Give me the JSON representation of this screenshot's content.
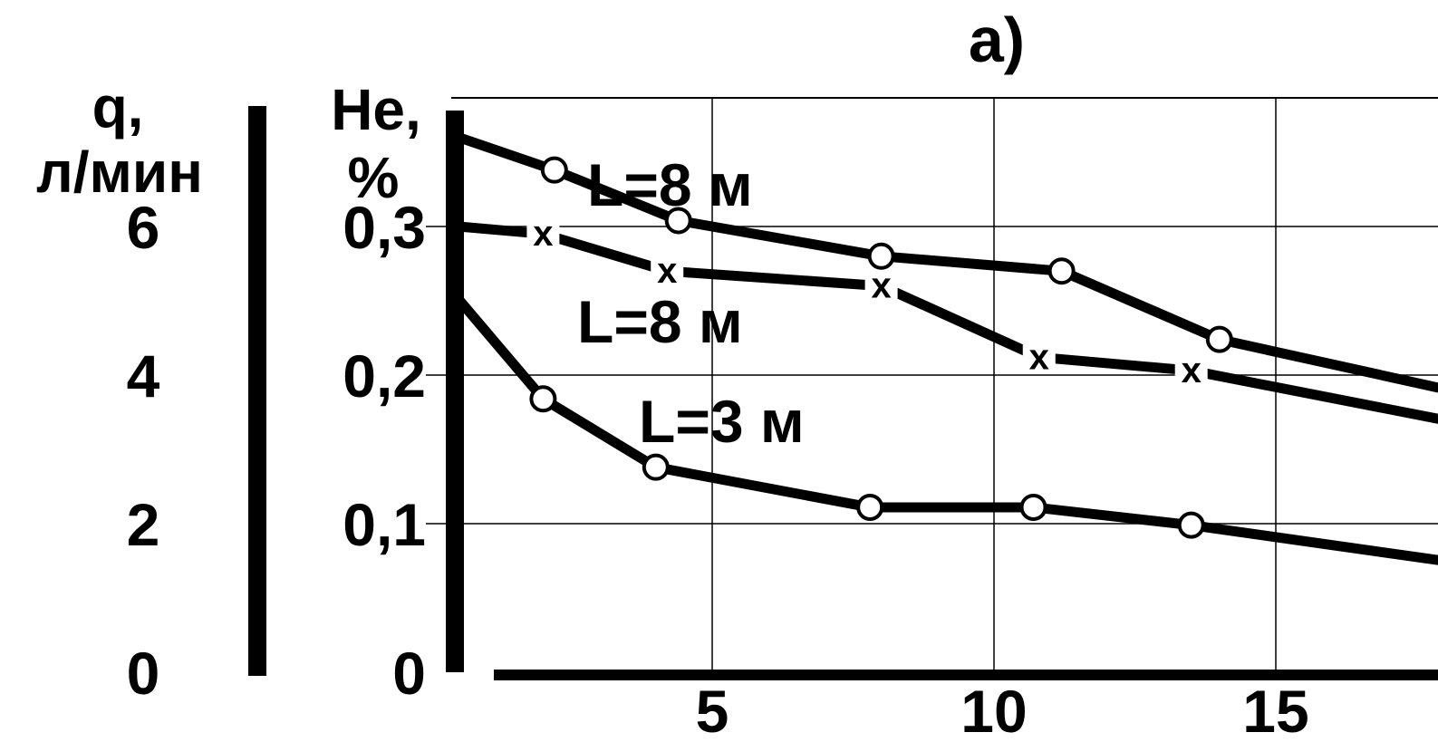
{
  "chart_data": {
    "type": "line",
    "title": "а)",
    "x": {
      "ticks": [
        5,
        10,
        15
      ],
      "range": [
        0.4,
        18.9
      ]
    },
    "y_left_q": {
      "label_line1": "q,",
      "label_line2": "л/мин",
      "ticks": [
        "0",
        "2",
        "4",
        "6"
      ],
      "tick_values": [
        0,
        2,
        4,
        6
      ],
      "range": [
        0,
        8
      ]
    },
    "y_right_he": {
      "label_line1": "He,",
      "label_line2": "%",
      "ticks": [
        "0",
        "0,1",
        "0,2",
        "0,3"
      ],
      "tick_values": [
        0,
        0.1,
        0.2,
        0.3
      ],
      "range": [
        0,
        0.4
      ]
    },
    "grid": true,
    "series": [
      {
        "name": "L=8 м",
        "marker": "circle",
        "points": [
          [
            0.5,
            0.36
          ],
          [
            2.2,
            0.338
          ],
          [
            4.4,
            0.304
          ],
          [
            8.0,
            0.28
          ],
          [
            11.2,
            0.27
          ],
          [
            14.0,
            0.224
          ],
          [
            18.9,
            0.183
          ]
        ]
      },
      {
        "name": "L=8 м",
        "marker": "x",
        "points": [
          [
            0.5,
            0.3
          ],
          [
            2.0,
            0.295
          ],
          [
            4.2,
            0.27
          ],
          [
            8.0,
            0.26
          ],
          [
            10.8,
            0.212
          ],
          [
            13.5,
            0.203
          ],
          [
            18.9,
            0.163
          ]
        ]
      },
      {
        "name": "L=3 м",
        "marker": "circle",
        "points": [
          [
            0.5,
            0.251
          ],
          [
            2.0,
            0.184
          ],
          [
            4.0,
            0.138
          ],
          [
            7.8,
            0.111
          ],
          [
            10.7,
            0.111
          ],
          [
            13.5,
            0.099
          ],
          [
            18.9,
            0.07
          ]
        ]
      }
    ]
  }
}
